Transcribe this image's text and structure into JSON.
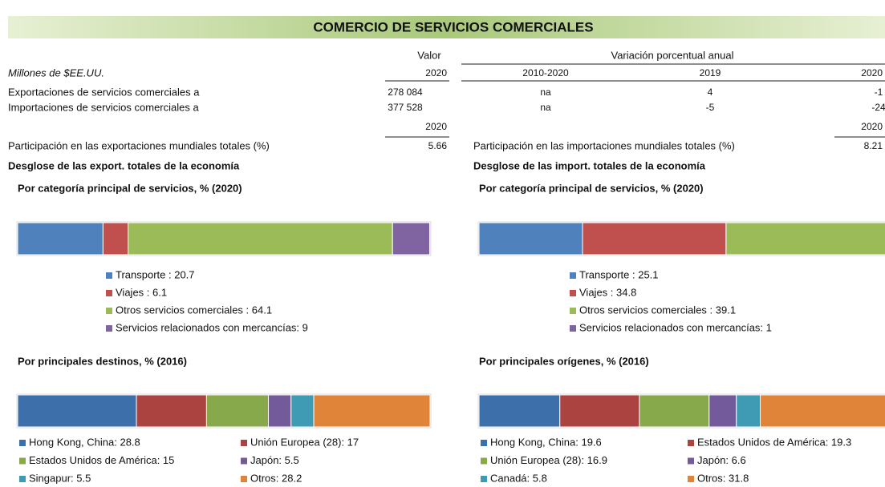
{
  "title": "COMERCIO DE SERVICIOS COMERCIALES",
  "table": {
    "header": [
      "Valor",
      "Variación porcentual anual"
    ],
    "subheader": [
      "Millones de $EE.UU.",
      "2020",
      "2010-2020",
      "2019",
      "2020"
    ],
    "rows": [
      [
        "Exportaciones de servicios comerciales  a",
        "278 084",
        "na",
        "4",
        "-1"
      ],
      [
        "Importaciones de servicios comerciales  a",
        "377 528",
        "na",
        "-5",
        "-24"
      ]
    ],
    "share_years": [
      "2020",
      "2020"
    ],
    "shares": [
      {
        "label": "Participación en las exportaciones mundiales totales (%)",
        "value": "5.66"
      },
      {
        "label": "Participación en las importaciones mundiales totales (%)",
        "value": "8.21"
      }
    ]
  },
  "panels": [
    {
      "heading": "Desglose de las export. totales de la economía",
      "charts": [
        {
          "type": "stacked-bar",
          "title": "Por categoría principal de servicios, % (2020)",
          "segments": [
            {
              "label": "Transporte : 20.7",
              "value": 20.7,
              "color": "#4f81bd"
            },
            {
              "label": "Viajes : 6.1",
              "value": 6.1,
              "color": "#c0504d"
            },
            {
              "label": "Otros servicios comerciales : 64.1",
              "value": 64.1,
              "color": "#9bbb59"
            },
            {
              "label": "Servicios relacionados con mercancías: 9",
              "value": 9,
              "color": "#8064a2"
            }
          ]
        },
        {
          "type": "stacked-bar",
          "title": "Por principales destinos, % (2016)",
          "segments": [
            {
              "label": "Hong Kong, China: 28.8",
              "value": 28.8,
              "color": "#3d6fab"
            },
            {
              "label": "Unión Europea (28): 17",
              "value": 17,
              "color": "#ab4341"
            },
            {
              "label": "Estados Unidos de América: 15",
              "value": 15,
              "color": "#88a94b"
            },
            {
              "label": "Japón: 5.5",
              "value": 5.5,
              "color": "#735a9a"
            },
            {
              "label": "Singapur: 5.5",
              "value": 5.5,
              "color": "#3f9ab3"
            },
            {
              "label": "Otros: 28.2",
              "value": 28.2,
              "color": "#e0843a"
            }
          ]
        }
      ]
    },
    {
      "heading": "Desglose de las import. totales de la economía",
      "charts": [
        {
          "type": "stacked-bar",
          "title": "Por categoría principal de servicios, % (2020)",
          "segments": [
            {
              "label": "Transporte : 25.1",
              "value": 25.1,
              "color": "#4f81bd"
            },
            {
              "label": "Viajes : 34.8",
              "value": 34.8,
              "color": "#c0504d"
            },
            {
              "label": "Otros servicios comerciales : 39.1",
              "value": 39.1,
              "color": "#9bbb59"
            },
            {
              "label": "Servicios relacionados con mercancías: 1",
              "value": 1,
              "color": "#8064a2"
            }
          ]
        },
        {
          "type": "stacked-bar",
          "title": "Por principales orígenes, % (2016)",
          "segments": [
            {
              "label": "Hong Kong, China: 19.6",
              "value": 19.6,
              "color": "#3d6fab"
            },
            {
              "label": "Estados Unidos de América: 19.3",
              "value": 19.3,
              "color": "#ab4341"
            },
            {
              "label": "Unión Europea (28): 16.9",
              "value": 16.9,
              "color": "#88a94b"
            },
            {
              "label": "Japón: 6.6",
              "value": 6.6,
              "color": "#735a9a"
            },
            {
              "label": "Canadá: 5.8",
              "value": 5.8,
              "color": "#3f9ab3"
            },
            {
              "label": "Otros: 31.8",
              "value": 31.8,
              "color": "#e0843a"
            }
          ]
        }
      ]
    }
  ]
}
